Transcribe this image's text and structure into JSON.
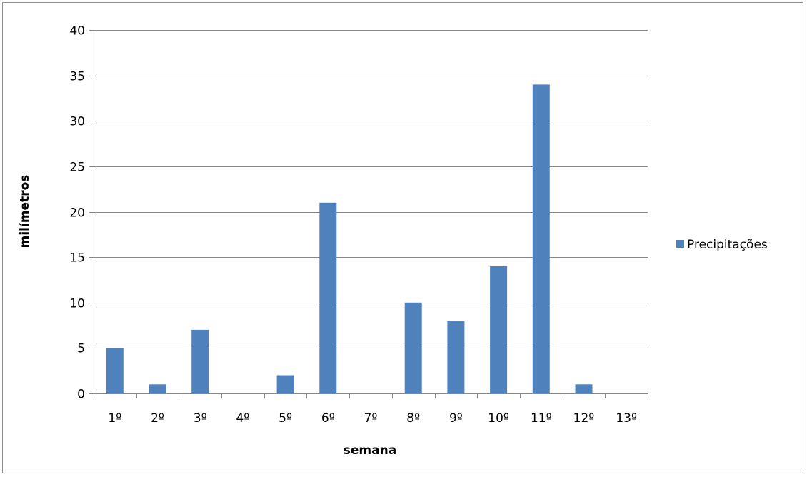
{
  "chart_data": {
    "type": "bar",
    "title": "",
    "xlabel": "semana",
    "ylabel": "milímetros",
    "categories": [
      "1º",
      "2º",
      "3º",
      "4º",
      "5º",
      "6º",
      "7º",
      "8º",
      "9º",
      "10º",
      "11º",
      "12º",
      "13º"
    ],
    "series": [
      {
        "name": "Precipitações",
        "values": [
          5,
          1,
          7,
          0,
          2,
          21,
          0,
          10,
          8,
          14,
          34,
          1,
          0
        ],
        "color": "#4f81bd"
      }
    ],
    "ylim": [
      0,
      40
    ],
    "yticks": [
      0,
      5,
      10,
      15,
      20,
      25,
      30,
      35,
      40
    ],
    "grid": true,
    "legend_position": "right"
  }
}
